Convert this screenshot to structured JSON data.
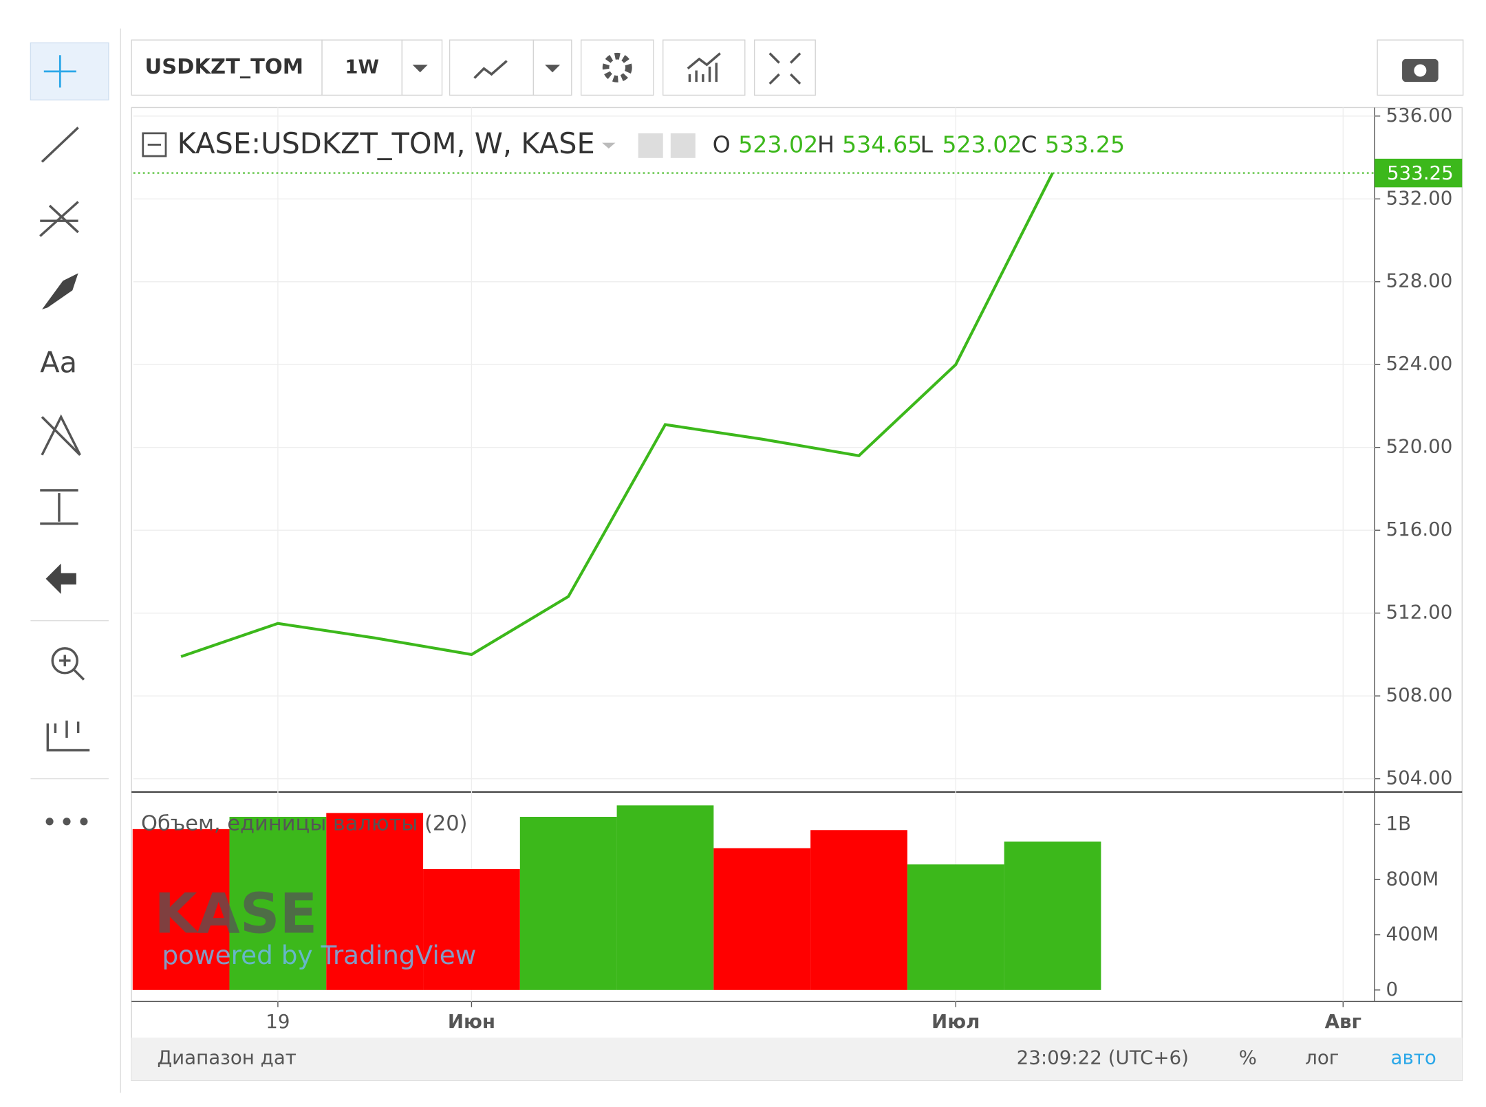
{
  "toolbar": {
    "symbol": "USDKZT_TOM",
    "interval": "1W"
  },
  "sidebar": {
    "text_tool": "Aa"
  },
  "legend": {
    "o_label": "O",
    "open": 523.02,
    "h_label": "H",
    "high": 534.65,
    "l_label": "L",
    "low": 523.02,
    "c_label": "C",
    "close": 533.25
  },
  "watermark": {
    "logo": "KASE",
    "powered": "powered by TradingView"
  },
  "footer": {
    "range": "Диапазон дат",
    "time": "23:09:22 (UTC+6)",
    "percent": "%",
    "log": "лог",
    "auto": "авто"
  },
  "chart_data": [
    {
      "type": "line",
      "title": "KASE:USDKZT_TOM, W, KASE",
      "color": "#3cb81b",
      "categories": [
        null,
        "19",
        null,
        "Июн",
        null,
        null,
        null,
        null,
        "Июл",
        null,
        null,
        null,
        "Авг"
      ],
      "values": [
        509.9,
        511.5,
        510.8,
        510.0,
        512.8,
        521.1,
        520.4,
        519.6,
        524.0,
        533.25,
        null,
        null,
        null
      ],
      "ylim": [
        503.36,
        536.41
      ],
      "yticks": [
        {
          "value": 504,
          "label": "504.00"
        },
        {
          "value": 508,
          "label": "508.00"
        },
        {
          "value": 512,
          "label": "512.00"
        },
        {
          "value": 516,
          "label": "516.00"
        },
        {
          "value": 520,
          "label": "520.00"
        },
        {
          "value": 524,
          "label": "524.00"
        },
        {
          "value": 528,
          "label": "528.00"
        },
        {
          "value": 532,
          "label": "532.00"
        },
        {
          "value": 536,
          "label": "536.00"
        }
      ],
      "grid": true
    },
    {
      "type": "bar",
      "title": "Объем, единицы валюты (20)",
      "values": [
        1166000000,
        1255000000,
        1283000000,
        876000000,
        1255000000,
        1338000000,
        1028000000,
        1159000000,
        910000000,
        1076000000,
        null,
        null,
        null
      ],
      "colors": [
        "#ff0000",
        "#3cb81b",
        "#ff0000",
        "#ff0000",
        "#3cb81b",
        "#3cb81b",
        "#ff0000",
        "#ff0000",
        "#3cb81b",
        "#3cb81b",
        null,
        null,
        null
      ],
      "ylim": [
        -83000000,
        1428000000
      ],
      "yticks": [
        0,
        {
          "value": 400000000,
          "label": "400M"
        },
        {
          "value": 800000000,
          "label": "800M"
        },
        {
          "value": 1200000000,
          "label": "1B"
        }
      ]
    }
  ]
}
